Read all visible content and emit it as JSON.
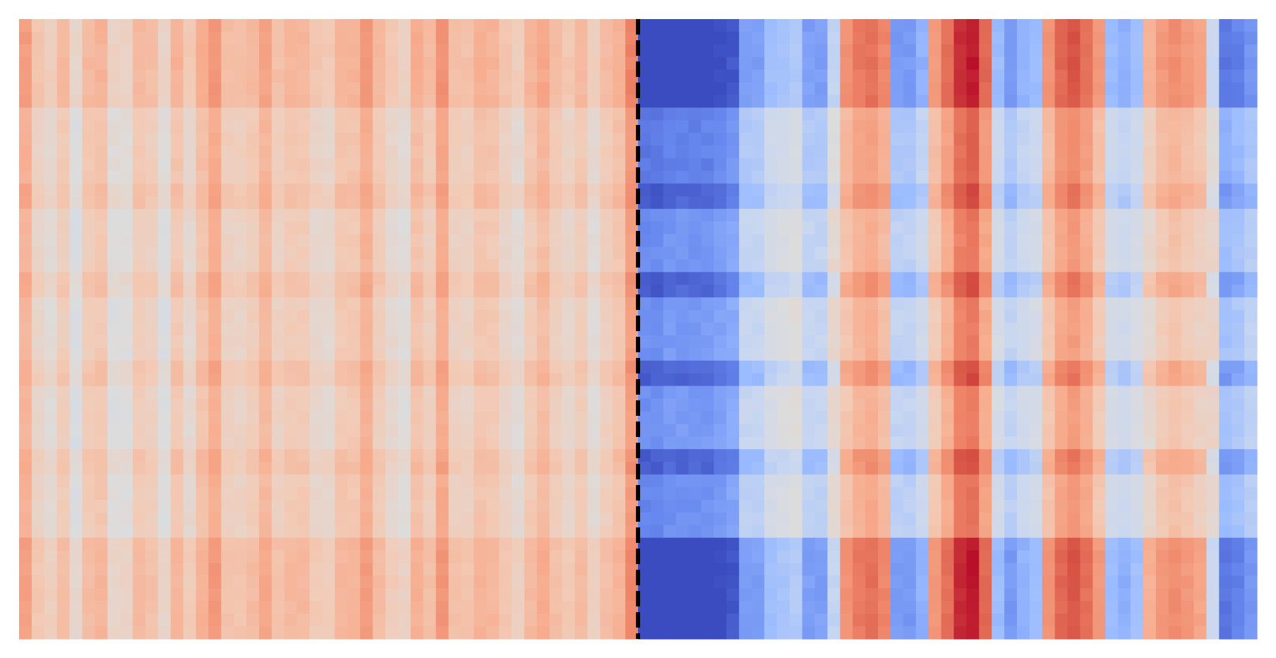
{
  "chart_data": {
    "type": "heatmap",
    "title": "",
    "xlabel": "",
    "ylabel": "",
    "rows": 49,
    "cols": 98,
    "colormap": "coolwarm",
    "colormap_stops": [
      "#3b4cc0",
      "#6788ee",
      "#9abbff",
      "#c9d7f0",
      "#dddcdc",
      "#f2cbb7",
      "#f7ac8e",
      "#ee8468",
      "#d65244",
      "#b40426"
    ],
    "value_range": [
      0,
      1
    ],
    "divider": {
      "style": "dashed",
      "color": "#000000",
      "after_column": 49
    },
    "left_block": {
      "columns": [
        0.65,
        0.52,
        0.48,
        0.56,
        0.44,
        0.56,
        0.58,
        0.46,
        0.46,
        0.56,
        0.54,
        0.45,
        0.58,
        0.5,
        0.6,
        0.67,
        0.54,
        0.53,
        0.56,
        0.63,
        0.54,
        0.57,
        0.57,
        0.51,
        0.5,
        0.58,
        0.58,
        0.66,
        0.56,
        0.5,
        0.47,
        0.6,
        0.55,
        0.68,
        0.54,
        0.53,
        0.59,
        0.58,
        0.52,
        0.48,
        0.57,
        0.62,
        0.55,
        0.51,
        0.56,
        0.48,
        0.55,
        0.59,
        0.72
      ],
      "row_bands": [
        {
          "rows": [
            0,
            6
          ],
          "delta": 0.06
        },
        {
          "rows": [
            7,
            12
          ],
          "delta": 0.0
        },
        {
          "rows": [
            13,
            14
          ],
          "delta": 0.03
        },
        {
          "rows": [
            15,
            19
          ],
          "delta": -0.02
        },
        {
          "rows": [
            20,
            21
          ],
          "delta": 0.02
        },
        {
          "rows": [
            22,
            26
          ],
          "delta": -0.02
        },
        {
          "rows": [
            27,
            28
          ],
          "delta": 0.02
        },
        {
          "rows": [
            29,
            33
          ],
          "delta": -0.02
        },
        {
          "rows": [
            34,
            35
          ],
          "delta": 0.02
        },
        {
          "rows": [
            36,
            40
          ],
          "delta": -0.01
        },
        {
          "rows": [
            41,
            48
          ],
          "delta": 0.05
        }
      ]
    },
    "right_block": {
      "columns": [
        0.08,
        0.08,
        0.1,
        0.1,
        0.1,
        0.1,
        0.12,
        0.14,
        0.28,
        0.28,
        0.36,
        0.38,
        0.4,
        0.28,
        0.28,
        0.44,
        0.62,
        0.68,
        0.7,
        0.65,
        0.27,
        0.27,
        0.32,
        0.6,
        0.7,
        0.82,
        0.85,
        0.72,
        0.35,
        0.27,
        0.32,
        0.35,
        0.62,
        0.72,
        0.76,
        0.7,
        0.6,
        0.35,
        0.32,
        0.36,
        0.53,
        0.6,
        0.63,
        0.6,
        0.57,
        0.46,
        0.2,
        0.22,
        0.26
      ],
      "row_bands": [
        {
          "rows": [
            0,
            6
          ],
          "delta": 0.12
        },
        {
          "rows": [
            7,
            12
          ],
          "delta": 0.0
        },
        {
          "rows": [
            13,
            14
          ],
          "delta": 0.05
        },
        {
          "rows": [
            15,
            19
          ],
          "delta": -0.04
        },
        {
          "rows": [
            20,
            21
          ],
          "delta": 0.05
        },
        {
          "rows": [
            22,
            26
          ],
          "delta": -0.05
        },
        {
          "rows": [
            27,
            28
          ],
          "delta": 0.05
        },
        {
          "rows": [
            29,
            33
          ],
          "delta": -0.05
        },
        {
          "rows": [
            34,
            35
          ],
          "delta": 0.05
        },
        {
          "rows": [
            36,
            40
          ],
          "delta": -0.03
        },
        {
          "rows": [
            41,
            48
          ],
          "delta": 0.12
        }
      ]
    }
  }
}
